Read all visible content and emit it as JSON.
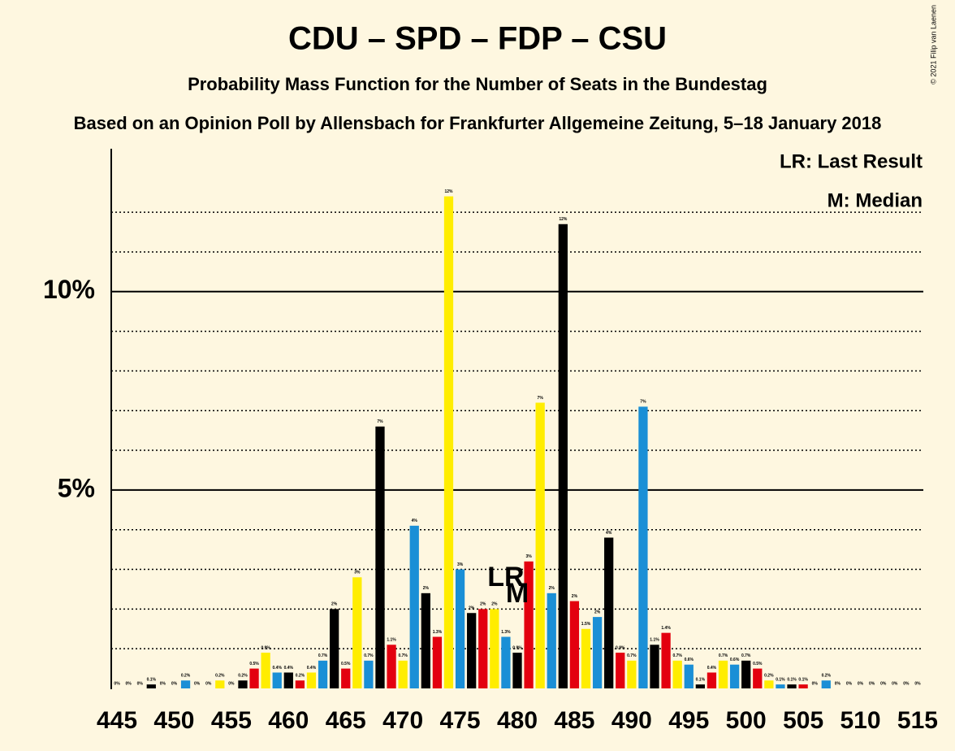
{
  "chart_data": {
    "type": "bar",
    "title": "CDU – SPD – FDP – CSU",
    "subtitle": "Probability Mass Function for the Number of Seats in the Bundestag",
    "subtitle2": "Based on an Opinion Poll by Allensbach for Frankfurter Allgemeine Zeitung, 5–18 January 2018",
    "copyright": "© 2021 Filip van Laenen",
    "legend_lr": "LR: Last Result",
    "legend_m": "M: Median",
    "annotations": [
      {
        "text": "LR",
        "x": 479
      },
      {
        "text": "M",
        "x": 480
      }
    ],
    "x": [
      445,
      446,
      447,
      448,
      449,
      450,
      451,
      452,
      453,
      454,
      455,
      456,
      457,
      458,
      459,
      460,
      461,
      462,
      463,
      464,
      465,
      466,
      467,
      468,
      469,
      470,
      471,
      472,
      473,
      474,
      475,
      476,
      477,
      478,
      479,
      480,
      481,
      482,
      483,
      484,
      485,
      486,
      487,
      488,
      489,
      490,
      491,
      492,
      493,
      494,
      495,
      496,
      497,
      498,
      499,
      500,
      501,
      502,
      503,
      504,
      505,
      506,
      507,
      508,
      509,
      510,
      511,
      512,
      513,
      514,
      515
    ],
    "values": [
      0,
      0,
      0,
      0.1,
      0,
      0,
      0.2,
      0,
      0,
      0.2,
      0,
      0.2,
      0.5,
      0.9,
      0.4,
      0.4,
      0.2,
      0.4,
      0.7,
      2,
      0.5,
      2.8,
      0.7,
      6.6,
      1.1,
      0.7,
      4.1,
      2.4,
      1.3,
      12.4,
      3,
      1.9,
      2,
      2,
      1.3,
      0.9,
      3.2,
      7.2,
      2.4,
      11.7,
      2.2,
      1.5,
      1.8,
      3.8,
      0.9,
      0.7,
      7.1,
      1.1,
      1.4,
      0.7,
      0.6,
      0.1,
      0.4,
      0.7,
      0.6,
      0.7,
      0.5,
      0.2,
      0.1,
      0.1,
      0.1,
      0,
      0.2,
      0,
      0,
      0,
      0,
      0,
      0,
      0,
      0
    ],
    "value_labels": [
      "0%",
      "0%",
      "0%",
      "0.1%",
      "0%",
      "0%",
      "0.2%",
      "0%",
      "0%",
      "0.2%",
      "0%",
      "0.2%",
      "0.5%",
      "0.9%",
      "0.4%",
      "0.4%",
      "0.2%",
      "0.4%",
      "0.7%",
      "2%",
      "0.5%",
      "3%",
      "0.7%",
      "7%",
      "1.1%",
      "0.7%",
      "4%",
      "2%",
      "1.3%",
      "12%",
      "3%",
      "2%",
      "2%",
      "2%",
      "1.3%",
      "0.9%",
      "3%",
      "7%",
      "2%",
      "12%",
      "2%",
      "1.5%",
      "2%",
      "4%",
      "0.9%",
      "0.7%",
      "7%",
      "1.1%",
      "1.4%",
      "0.7%",
      "0.6%",
      "0.1%",
      "0.4%",
      "0.7%",
      "0.6%",
      "0.7%",
      "0.5%",
      "0.2%",
      "0.1%",
      "0.1%",
      "0.1%",
      "0%",
      "0.2%",
      "0%",
      "0%",
      "0%",
      "0%",
      "0%",
      "0%",
      "0%",
      "0%"
    ],
    "color_cycle": [
      "#e3000f",
      "#ffed00",
      "#1a8fd6",
      "#000000"
    ],
    "xlim": [
      444.5,
      515.5
    ],
    "xticks": [
      445,
      450,
      455,
      460,
      465,
      470,
      475,
      480,
      485,
      490,
      495,
      500,
      505,
      510,
      515
    ],
    "ylim": [
      0,
      13.6
    ],
    "yticks": [
      {
        "value": 5,
        "label": "5%"
      },
      {
        "value": 10,
        "label": "10%"
      }
    ],
    "minor_yticks": [
      1,
      2,
      3,
      4,
      6,
      7,
      8,
      9,
      11,
      12
    ]
  }
}
